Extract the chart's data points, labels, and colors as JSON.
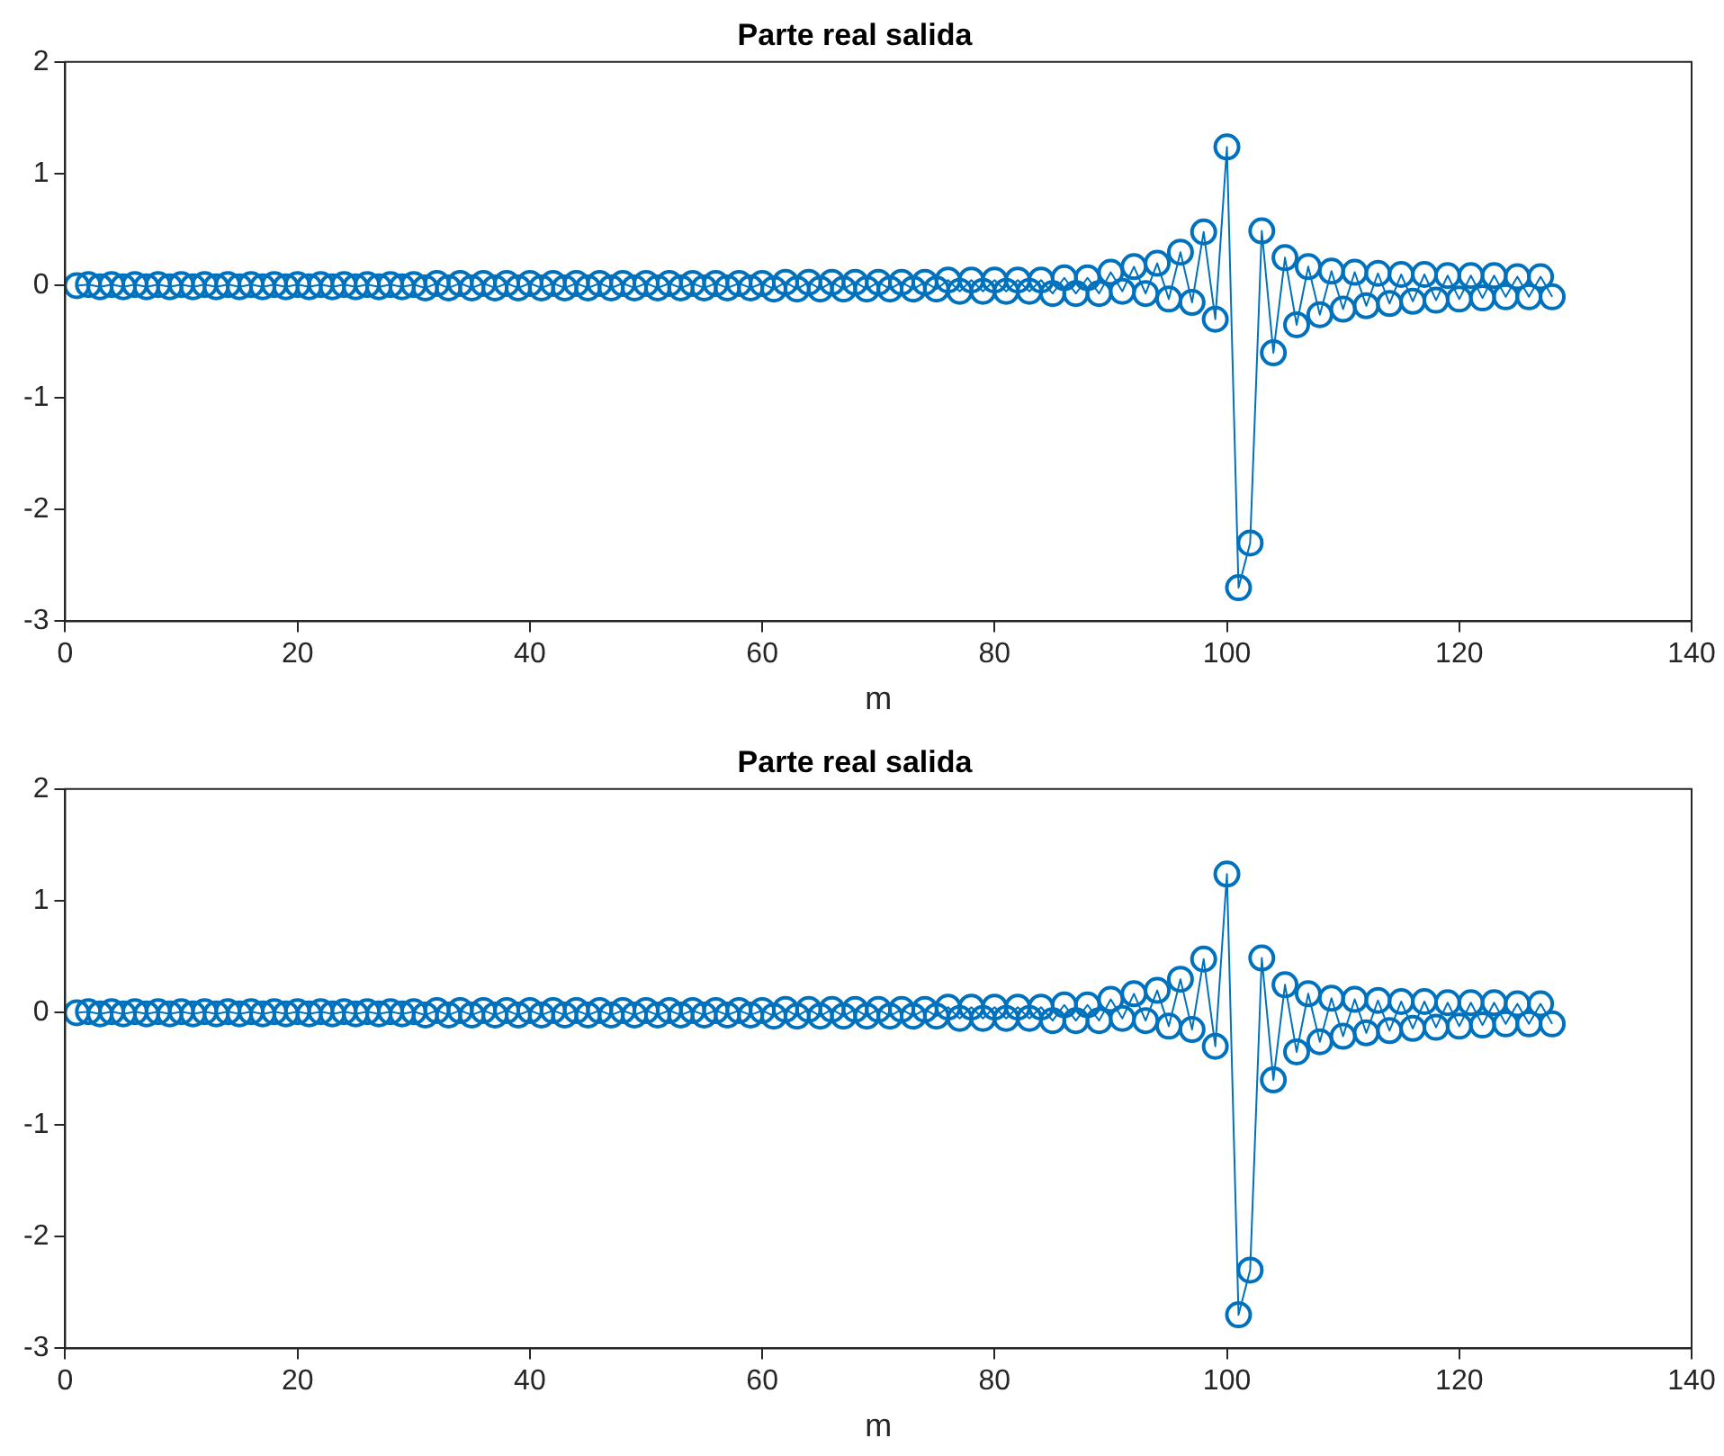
{
  "chart_data": [
    {
      "type": "line",
      "title": "Parte real salida",
      "xlabel": "m",
      "marker": "circle",
      "line_style": "solid",
      "grid": false,
      "legend": false,
      "xlim": [
        0,
        140
      ],
      "xticks": [
        0,
        20,
        40,
        60,
        80,
        100,
        120,
        140
      ],
      "ylim": [
        -3,
        2
      ],
      "yticks": [
        -3,
        -2,
        -1,
        0,
        1,
        2
      ],
      "x": [
        1,
        2,
        3,
        4,
        5,
        6,
        7,
        8,
        9,
        10,
        11,
        12,
        13,
        14,
        15,
        16,
        17,
        18,
        19,
        20,
        21,
        22,
        23,
        24,
        25,
        26,
        27,
        28,
        29,
        30,
        31,
        32,
        33,
        34,
        35,
        36,
        37,
        38,
        39,
        40,
        41,
        42,
        43,
        44,
        45,
        46,
        47,
        48,
        49,
        50,
        51,
        52,
        53,
        54,
        55,
        56,
        57,
        58,
        59,
        60,
        61,
        62,
        63,
        64,
        65,
        66,
        67,
        68,
        69,
        70,
        71,
        72,
        73,
        74,
        75,
        76,
        77,
        78,
        79,
        80,
        81,
        82,
        83,
        84,
        85,
        86,
        87,
        88,
        89,
        90,
        91,
        92,
        93,
        94,
        95,
        96,
        97,
        98,
        99,
        100,
        101,
        102,
        103,
        104,
        105,
        106,
        107,
        108,
        109,
        110,
        111,
        112,
        113,
        114,
        115,
        116,
        117,
        118,
        119,
        120,
        121,
        122,
        123,
        124,
        125,
        126,
        127,
        128
      ],
      "series": [
        {
          "color": "#0072bd",
          "values": [
            0,
            0.01,
            -0.01,
            0.01,
            -0.01,
            0.01,
            -0.01,
            0.01,
            -0.01,
            0.01,
            -0.01,
            0.01,
            -0.01,
            0.01,
            -0.01,
            0.01,
            -0.01,
            0.01,
            -0.01,
            0.01,
            -0.01,
            0.01,
            -0.01,
            0.01,
            -0.01,
            0.01,
            -0.01,
            0.01,
            -0.01,
            0.01,
            -0.02,
            0.02,
            -0.02,
            0.02,
            -0.02,
            0.02,
            -0.02,
            0.02,
            -0.02,
            0.02,
            -0.02,
            0.02,
            -0.02,
            0.02,
            -0.02,
            0.02,
            -0.02,
            0.02,
            -0.02,
            0.02,
            -0.02,
            0.02,
            -0.02,
            0.02,
            -0.02,
            0.02,
            -0.02,
            0.02,
            -0.02,
            0.02,
            -0.03,
            0.03,
            -0.03,
            0.03,
            -0.03,
            0.03,
            -0.03,
            0.03,
            -0.03,
            0.03,
            -0.03,
            0.03,
            -0.03,
            0.03,
            -0.03,
            0.05,
            -0.05,
            0.05,
            -0.05,
            0.05,
            -0.05,
            0.05,
            -0.05,
            0.05,
            -0.07,
            0.07,
            -0.07,
            0.07,
            -0.07,
            0.12,
            -0.05,
            0.17,
            -0.07,
            0.2,
            -0.12,
            0.3,
            -0.15,
            0.48,
            -0.3,
            1.24,
            -2.7,
            -2.3,
            0.49,
            -0.6,
            0.25,
            -0.35,
            0.17,
            -0.26,
            0.13,
            -0.21,
            0.12,
            -0.18,
            0.11,
            -0.16,
            0.1,
            -0.14,
            0.1,
            -0.13,
            0.09,
            -0.12,
            0.09,
            -0.11,
            0.09,
            -0.1,
            0.08,
            -0.1,
            0.08,
            -0.1
          ]
        }
      ]
    },
    {
      "type": "line",
      "title": "Parte real salida",
      "xlabel": "m",
      "marker": "circle",
      "line_style": "solid",
      "grid": false,
      "legend": false,
      "xlim": [
        0,
        140
      ],
      "xticks": [
        0,
        20,
        40,
        60,
        80,
        100,
        120,
        140
      ],
      "ylim": [
        -3,
        2
      ],
      "yticks": [
        -3,
        -2,
        -1,
        0,
        1,
        2
      ],
      "x": [
        1,
        2,
        3,
        4,
        5,
        6,
        7,
        8,
        9,
        10,
        11,
        12,
        13,
        14,
        15,
        16,
        17,
        18,
        19,
        20,
        21,
        22,
        23,
        24,
        25,
        26,
        27,
        28,
        29,
        30,
        31,
        32,
        33,
        34,
        35,
        36,
        37,
        38,
        39,
        40,
        41,
        42,
        43,
        44,
        45,
        46,
        47,
        48,
        49,
        50,
        51,
        52,
        53,
        54,
        55,
        56,
        57,
        58,
        59,
        60,
        61,
        62,
        63,
        64,
        65,
        66,
        67,
        68,
        69,
        70,
        71,
        72,
        73,
        74,
        75,
        76,
        77,
        78,
        79,
        80,
        81,
        82,
        83,
        84,
        85,
        86,
        87,
        88,
        89,
        90,
        91,
        92,
        93,
        94,
        95,
        96,
        97,
        98,
        99,
        100,
        101,
        102,
        103,
        104,
        105,
        106,
        107,
        108,
        109,
        110,
        111,
        112,
        113,
        114,
        115,
        116,
        117,
        118,
        119,
        120,
        121,
        122,
        123,
        124,
        125,
        126,
        127,
        128
      ],
      "series": [
        {
          "color": "#0072bd",
          "values": [
            0,
            0.01,
            -0.01,
            0.01,
            -0.01,
            0.01,
            -0.01,
            0.01,
            -0.01,
            0.01,
            -0.01,
            0.01,
            -0.01,
            0.01,
            -0.01,
            0.01,
            -0.01,
            0.01,
            -0.01,
            0.01,
            -0.01,
            0.01,
            -0.01,
            0.01,
            -0.01,
            0.01,
            -0.01,
            0.01,
            -0.01,
            0.01,
            -0.02,
            0.02,
            -0.02,
            0.02,
            -0.02,
            0.02,
            -0.02,
            0.02,
            -0.02,
            0.02,
            -0.02,
            0.02,
            -0.02,
            0.02,
            -0.02,
            0.02,
            -0.02,
            0.02,
            -0.02,
            0.02,
            -0.02,
            0.02,
            -0.02,
            0.02,
            -0.02,
            0.02,
            -0.02,
            0.02,
            -0.02,
            0.02,
            -0.03,
            0.03,
            -0.03,
            0.03,
            -0.03,
            0.03,
            -0.03,
            0.03,
            -0.03,
            0.03,
            -0.03,
            0.03,
            -0.03,
            0.03,
            -0.03,
            0.05,
            -0.05,
            0.05,
            -0.05,
            0.05,
            -0.05,
            0.05,
            -0.05,
            0.05,
            -0.07,
            0.07,
            -0.07,
            0.07,
            -0.07,
            0.12,
            -0.05,
            0.17,
            -0.07,
            0.2,
            -0.12,
            0.3,
            -0.15,
            0.48,
            -0.3,
            1.24,
            -2.7,
            -2.3,
            0.49,
            -0.6,
            0.25,
            -0.35,
            0.17,
            -0.26,
            0.13,
            -0.21,
            0.12,
            -0.18,
            0.11,
            -0.16,
            0.1,
            -0.14,
            0.1,
            -0.13,
            0.09,
            -0.12,
            0.09,
            -0.11,
            0.09,
            -0.1,
            0.08,
            -0.1,
            0.08,
            -0.1
          ]
        }
      ]
    }
  ]
}
